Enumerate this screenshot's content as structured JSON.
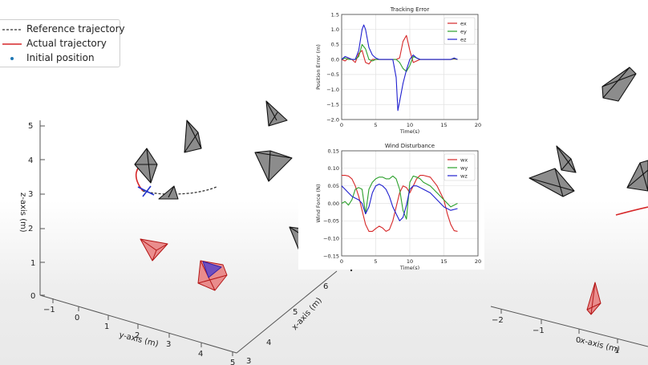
{
  "legend": {
    "reference": "Reference trajectory",
    "actual": "Actual trajectory",
    "initial": "Initial position"
  },
  "axes3d_left": {
    "z_label": "z-axis (m)",
    "y_label": "y-axis (m)",
    "x_label": "x-axis (m)",
    "z_ticks": [
      "0",
      "1",
      "2",
      "3",
      "4",
      "5"
    ],
    "y_ticks": [
      "−1",
      "0",
      "1",
      "2",
      "3",
      "4",
      "5"
    ],
    "x_ticks": [
      "6",
      "5",
      "4",
      "3"
    ]
  },
  "axes3d_right": {
    "x_label": "x-axis (m)",
    "x_ticks": [
      "−2",
      "−1",
      "0",
      "1"
    ]
  },
  "colors": {
    "reference": "#333333",
    "actual": "#d62728",
    "initial": "#1f77b4",
    "ex": "#d62728",
    "ey": "#2ca02c",
    "ez": "#1f1fcf"
  },
  "chart_data": [
    {
      "type": "line",
      "title": "Tracking Error",
      "xlabel": "Time(s)",
      "ylabel": "Position Error (m)",
      "xlim": [
        0,
        20
      ],
      "ylim": [
        -2.0,
        1.5
      ],
      "xticks": [
        "0",
        "5",
        "10",
        "15",
        "20"
      ],
      "yticks": [
        "1.5",
        "1.0",
        "0.5",
        "0.0",
        "−0.5",
        "−1.0",
        "−1.5",
        "−2.0"
      ],
      "legend_position": "top-right",
      "grid": true,
      "series": [
        {
          "name": "ex",
          "color": "#d62728",
          "x": [
            0,
            0.5,
            1,
            1.5,
            2,
            2.5,
            3,
            3.5,
            4,
            4.5,
            5,
            5.5,
            6,
            6.5,
            7,
            7.5,
            8,
            8.5,
            9,
            9.5,
            10,
            10.5,
            11,
            11.5,
            12,
            13,
            14,
            15,
            16,
            16.5,
            17
          ],
          "y": [
            0.0,
            -0.05,
            0.05,
            0.0,
            -0.1,
            0.2,
            0.3,
            -0.1,
            -0.15,
            0.0,
            0.0,
            0.0,
            0.0,
            0.0,
            0.0,
            0.0,
            0.0,
            0.05,
            0.6,
            0.8,
            0.3,
            -0.1,
            -0.05,
            0.0,
            0.0,
            0.0,
            0.0,
            0.0,
            0.0,
            0.02,
            0.0
          ]
        },
        {
          "name": "ey",
          "color": "#2ca02c",
          "x": [
            0,
            0.5,
            1,
            1.5,
            2,
            2.5,
            3,
            3.5,
            4,
            4.5,
            5,
            5.5,
            6,
            6.5,
            7,
            7.5,
            8,
            8.5,
            9,
            9.5,
            10,
            10.5,
            11,
            11.5,
            12,
            13,
            14,
            15,
            16,
            16.5,
            17
          ],
          "y": [
            0.0,
            0.05,
            0.0,
            0.0,
            0.0,
            0.1,
            0.5,
            0.35,
            0.0,
            -0.05,
            0.0,
            0.0,
            0.0,
            0.0,
            0.0,
            0.0,
            0.0,
            -0.1,
            -0.3,
            -0.4,
            -0.2,
            0.1,
            0.05,
            0.0,
            0.0,
            0.0,
            0.0,
            0.0,
            0.0,
            0.03,
            0.0
          ]
        },
        {
          "name": "ez",
          "color": "#1f1fcf",
          "x": [
            0,
            0.5,
            1,
            1.5,
            2,
            2.5,
            3,
            3.25,
            3.5,
            4,
            4.5,
            5,
            5.5,
            6,
            6.5,
            7,
            7.5,
            8,
            8.25,
            8.5,
            9,
            9.5,
            10,
            10.5,
            11,
            11.5,
            12,
            13,
            14,
            15,
            16,
            16.5,
            17
          ],
          "y": [
            0.0,
            0.1,
            0.05,
            0.0,
            0.0,
            0.3,
            1.0,
            1.15,
            1.0,
            0.4,
            0.15,
            0.05,
            0.0,
            0.0,
            0.0,
            0.0,
            0.0,
            -0.6,
            -1.7,
            -1.4,
            -0.8,
            -0.35,
            0.0,
            0.15,
            0.05,
            0.0,
            0.0,
            0.0,
            0.0,
            0.0,
            0.0,
            0.05,
            0.0
          ]
        }
      ]
    },
    {
      "type": "line",
      "title": "Wind Disturbance",
      "xlabel": "Time(s)",
      "ylabel": "Wind Force (N)",
      "xlim": [
        0,
        20
      ],
      "ylim": [
        -0.15,
        0.15
      ],
      "xticks": [
        "0",
        "5",
        "10",
        "15",
        "20"
      ],
      "yticks": [
        "0.15",
        "0.10",
        "0.05",
        "0.00",
        "−0.05",
        "−0.10",
        "−0.15"
      ],
      "legend_position": "top-right",
      "grid": true,
      "series": [
        {
          "name": "wx",
          "color": "#d62728",
          "x": [
            0,
            0.5,
            1,
            1.5,
            2,
            2.5,
            3,
            3.5,
            4,
            4.5,
            5,
            5.5,
            6,
            6.5,
            7,
            7.5,
            8,
            8.5,
            9,
            9.5,
            10,
            10.5,
            11,
            11.5,
            12,
            13,
            14,
            15,
            15.5,
            16,
            16.5,
            17
          ],
          "y": [
            0.08,
            0.08,
            0.078,
            0.07,
            0.05,
            0.02,
            -0.02,
            -0.06,
            -0.08,
            -0.08,
            -0.072,
            -0.065,
            -0.07,
            -0.08,
            -0.075,
            -0.05,
            -0.01,
            0.03,
            0.05,
            0.045,
            0.03,
            0.05,
            0.07,
            0.08,
            0.08,
            0.075,
            0.05,
            0.01,
            -0.03,
            -0.06,
            -0.078,
            -0.08
          ]
        },
        {
          "name": "wy",
          "color": "#2ca02c",
          "x": [
            0,
            0.5,
            1,
            1.5,
            2,
            2.5,
            3,
            3.5,
            4,
            4.5,
            5,
            5.5,
            6,
            6.5,
            7,
            7.5,
            8,
            8.5,
            9,
            9.5,
            10,
            10.5,
            11,
            11.5,
            12,
            13,
            14,
            15,
            16,
            17
          ],
          "y": [
            0.0,
            0.005,
            -0.005,
            0.01,
            0.04,
            0.045,
            0.04,
            -0.03,
            0.04,
            0.06,
            0.07,
            0.075,
            0.075,
            0.07,
            0.07,
            0.078,
            0.07,
            0.04,
            -0.02,
            -0.045,
            0.06,
            0.078,
            0.075,
            0.07,
            0.06,
            0.05,
            0.03,
            0.01,
            -0.01,
            0.0
          ]
        },
        {
          "name": "wz",
          "color": "#1f1fcf",
          "x": [
            0,
            0.5,
            1,
            1.5,
            2,
            2.5,
            3,
            3.5,
            4,
            4.5,
            5,
            5.5,
            6,
            6.5,
            7,
            7.5,
            8,
            8.5,
            9,
            9.5,
            10,
            10.5,
            11,
            11.5,
            12,
            13,
            14,
            15,
            16,
            17
          ],
          "y": [
            0.05,
            0.04,
            0.03,
            0.02,
            0.015,
            0.01,
            0.0,
            -0.03,
            -0.01,
            0.03,
            0.05,
            0.055,
            0.05,
            0.04,
            0.02,
            -0.01,
            -0.03,
            -0.05,
            -0.04,
            -0.005,
            0.04,
            0.05,
            0.05,
            0.045,
            0.04,
            0.03,
            0.01,
            -0.01,
            -0.02,
            -0.015
          ]
        }
      ]
    }
  ]
}
